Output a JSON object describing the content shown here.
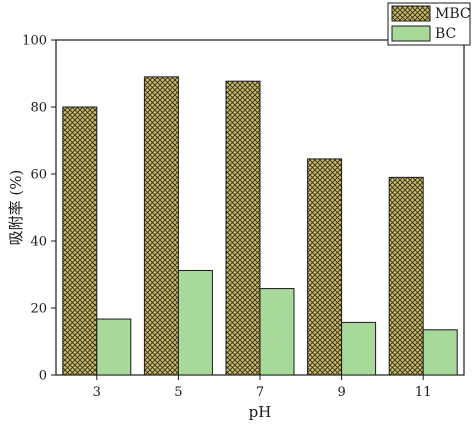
{
  "chart_data": {
    "type": "bar",
    "xlabel": "pH",
    "ylabel": "吸附率 (%)",
    "categories": [
      "3",
      "5",
      "7",
      "9",
      "11"
    ],
    "ylim": [
      0,
      100
    ],
    "yticks": [
      0,
      20,
      40,
      60,
      80,
      100
    ],
    "grid": false,
    "legend_position": "top-right",
    "series": [
      {
        "name": "MBC",
        "values": [
          80,
          89,
          87.7,
          64.5,
          59
        ],
        "color": "#c7b96a",
        "pattern": "crosshatch"
      },
      {
        "name": "BC",
        "values": [
          16.7,
          31.2,
          25.8,
          15.7,
          13.5
        ],
        "color": "#a6d99a",
        "pattern": "solid"
      }
    ]
  }
}
